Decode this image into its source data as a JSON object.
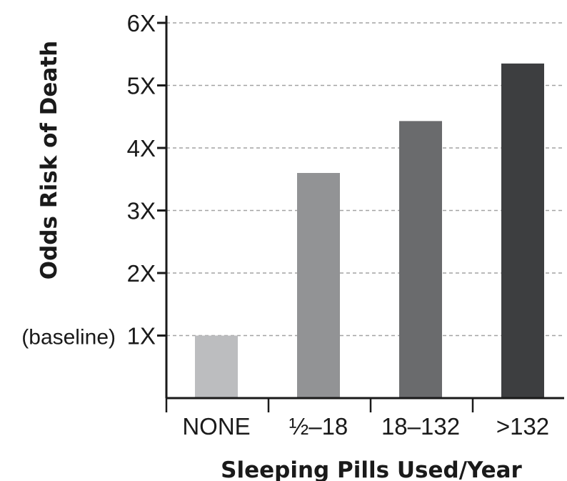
{
  "chart_data": {
    "type": "bar",
    "title": "",
    "xlabel": "Sleeping Pills Used/Year",
    "ylabel": "Odds Risk of Death",
    "categories": [
      "NONE",
      "½–18",
      "18–132",
      ">132"
    ],
    "values": [
      1.0,
      3.6,
      4.43,
      5.35
    ],
    "bar_colors": [
      "#bcbdbf",
      "#929395",
      "#6a6b6d",
      "#3d3e40"
    ],
    "ylim": [
      0,
      6
    ],
    "y_ticks": [
      {
        "value": 1,
        "label": "1X"
      },
      {
        "value": 2,
        "label": "2X"
      },
      {
        "value": 3,
        "label": "3X"
      },
      {
        "value": 4,
        "label": "4X"
      },
      {
        "value": 5,
        "label": "5X"
      },
      {
        "value": 6,
        "label": "6X"
      }
    ],
    "baseline_annotation": "(baseline)",
    "grid": "dashed horizontal",
    "legend": "none"
  }
}
